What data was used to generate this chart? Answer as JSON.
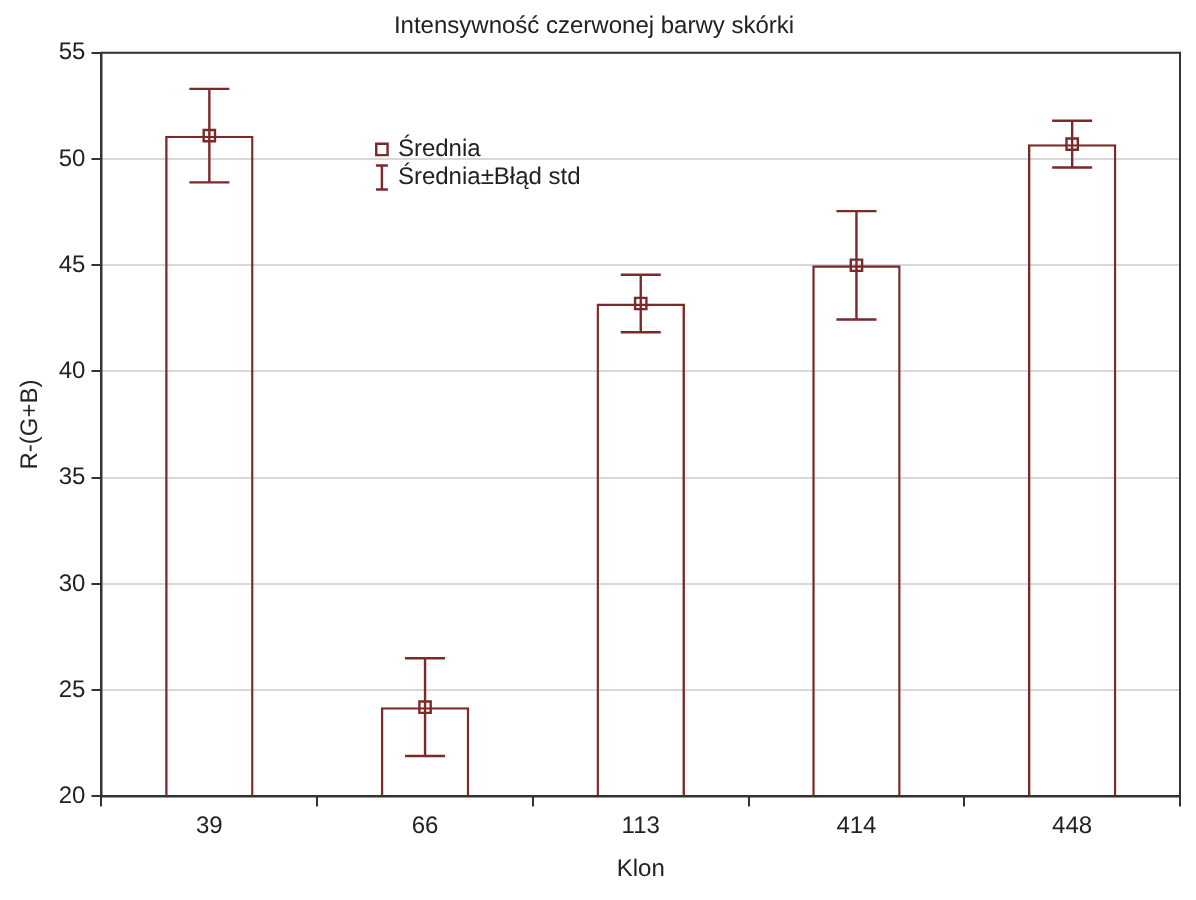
{
  "chart_data": {
    "type": "bar",
    "title": "Intensywność czerwonej barwy skórki",
    "xlabel": "Klon",
    "ylabel": "R-(G+B)",
    "categories": [
      "39",
      "66",
      "113",
      "414",
      "448"
    ],
    "series": [
      {
        "color": "#7b2a2a",
        "values": [
          51.1,
          24.2,
          43.2,
          45.0,
          50.7
        ]
      },
      {
        "type": "scatter",
        "name": "Średnia",
        "color": "#7b2a2a",
        "x": [
          "39",
          "66",
          "113",
          "414",
          "448"
        ],
        "values": [
          51.1,
          24.2,
          43.2,
          45.0,
          50.7
        ],
        "errors": [
          2.2,
          2.3,
          1.35,
          2.55,
          1.1
        ]
      }
    ],
    "annotations": [
      "Średnia±Błąd std"
    ],
    "ylim": [
      20,
      55
    ],
    "yticks": [
      20,
      25,
      30,
      35,
      40,
      45,
      50,
      55
    ],
    "grid": "y",
    "legend": "top left",
    "marker": "square"
  }
}
